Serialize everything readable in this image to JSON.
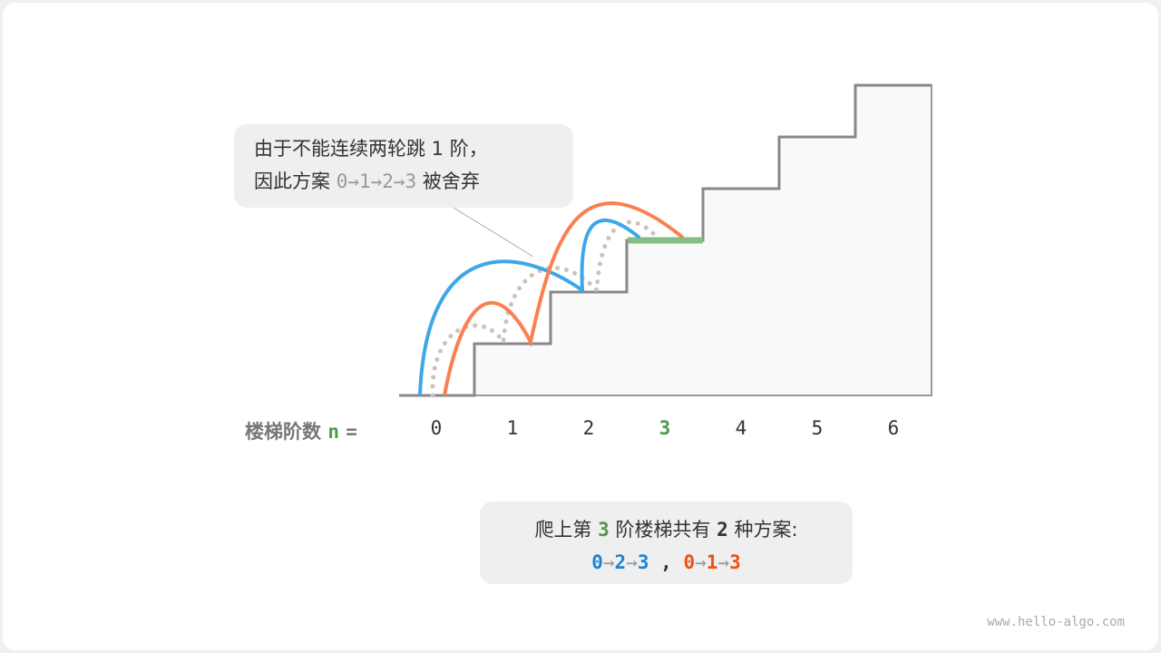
{
  "callout": {
    "line1": "由于不能连续两轮跳 1 阶，",
    "line2_prefix": "因此方案 ",
    "line2_path": "0→1→2→3",
    "line2_suffix": " 被舍弃"
  },
  "axis": {
    "label": "楼梯阶数",
    "var": "n",
    "eq": "=",
    "ticks": [
      "0",
      "1",
      "2",
      "3",
      "4",
      "5",
      "6"
    ],
    "highlight": "3"
  },
  "result": {
    "p1": "爬上第 ",
    "n": "3",
    "p2": " 阶楼梯共有 ",
    "count": "2",
    "p3": " 种方案:",
    "path1": [
      "0",
      "2",
      "3"
    ],
    "sep": ",",
    "path2": [
      "0",
      "1",
      "3"
    ],
    "arrow": "→"
  },
  "colors": {
    "blue": "#3ea6ea",
    "orange": "#f98050",
    "green": "#4d9a4d",
    "stair_top": "#85bd85",
    "path1_text": "#1a85d8",
    "path2_text": "#f05010",
    "dotted": "#c8c4bc"
  },
  "watermark": "www.hello-algo.com"
}
